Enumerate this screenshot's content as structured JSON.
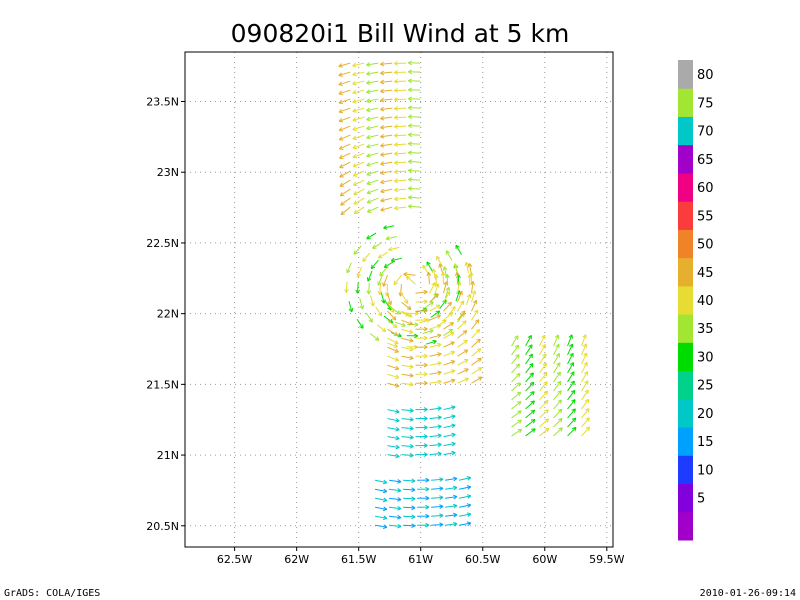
{
  "title": "090820i1 Bill Wind at 5 km",
  "footer": {
    "left": "GrADS: COLA/IGES",
    "right": "2010-01-26-09:14"
  },
  "map": {
    "lon_range": [
      -62.9,
      -59.45
    ],
    "lat_range": [
      20.35,
      23.85
    ],
    "grid": true,
    "x_ticks": [
      {
        "value": -62.5,
        "label": "62.5W"
      },
      {
        "value": -62.0,
        "label": "62W"
      },
      {
        "value": -61.5,
        "label": "61.5W"
      },
      {
        "value": -61.0,
        "label": "61W"
      },
      {
        "value": -60.5,
        "label": "60.5W"
      },
      {
        "value": -60.0,
        "label": "60W"
      },
      {
        "value": -59.5,
        "label": "59.5W"
      }
    ],
    "y_ticks": [
      {
        "value": 20.5,
        "label": "20.5N"
      },
      {
        "value": 21.0,
        "label": "21N"
      },
      {
        "value": 21.5,
        "label": "21.5N"
      },
      {
        "value": 22.0,
        "label": "22N"
      },
      {
        "value": 22.5,
        "label": "22.5N"
      },
      {
        "value": 23.0,
        "label": "23N"
      },
      {
        "value": 23.5,
        "label": "23.5N"
      }
    ]
  },
  "colorbar": {
    "bins": [
      {
        "color": "#a000c8",
        "label": ""
      },
      {
        "color": "#8200dc",
        "label": "5"
      },
      {
        "color": "#1e3cff",
        "label": "10"
      },
      {
        "color": "#00a0ff",
        "label": "15"
      },
      {
        "color": "#00c8c8",
        "label": "20"
      },
      {
        "color": "#00d28c",
        "label": "25"
      },
      {
        "color": "#00dc00",
        "label": "30"
      },
      {
        "color": "#a0e632",
        "label": "35"
      },
      {
        "color": "#e6dc32",
        "label": "40"
      },
      {
        "color": "#e6af2d",
        "label": "45"
      },
      {
        "color": "#f08228",
        "label": "50"
      },
      {
        "color": "#fa3c3c",
        "label": "55"
      },
      {
        "color": "#f00082",
        "label": "60"
      },
      {
        "color": "#a000c8",
        "label": "65"
      },
      {
        "color": "#00c8c8",
        "label": "70"
      },
      {
        "color": "#a0e632",
        "label": "75"
      },
      {
        "color": "#aaaaaa",
        "label": "80"
      }
    ]
  },
  "wind_field": {
    "center": [
      -61.05,
      22.2
    ],
    "bands": [
      {
        "shape": "arc",
        "lon_range": [
          -61.6,
          -60.95
        ],
        "lat_range": [
          22.7,
          23.8
        ],
        "colors": [
          "#e6af2d",
          "#e6dc32",
          "#a0e632"
        ]
      },
      {
        "shape": "ring",
        "center": [
          -61.1,
          22.2
        ],
        "radius": 0.5,
        "colors": [
          "#e6dc32",
          "#a0e632",
          "#00dc00"
        ]
      },
      {
        "shape": "arc",
        "lon_range": [
          -61.3,
          -60.55
        ],
        "lat_range": [
          21.5,
          22.3
        ],
        "colors": [
          "#e6af2d",
          "#e6dc32"
        ]
      },
      {
        "shape": "arc",
        "lon_range": [
          -60.3,
          -59.7
        ],
        "lat_range": [
          21.1,
          21.8
        ],
        "colors": [
          "#a0e632",
          "#00dc00",
          "#e6dc32"
        ]
      },
      {
        "shape": "arc",
        "lon_range": [
          -61.3,
          -60.8
        ],
        "lat_range": [
          21.0,
          21.35
        ],
        "colors": [
          "#00c8c8"
        ]
      },
      {
        "shape": "arc",
        "lon_range": [
          -61.4,
          -60.6
        ],
        "lat_range": [
          20.45,
          20.85
        ],
        "colors": [
          "#00c8c8",
          "#00a0ff"
        ]
      }
    ]
  }
}
